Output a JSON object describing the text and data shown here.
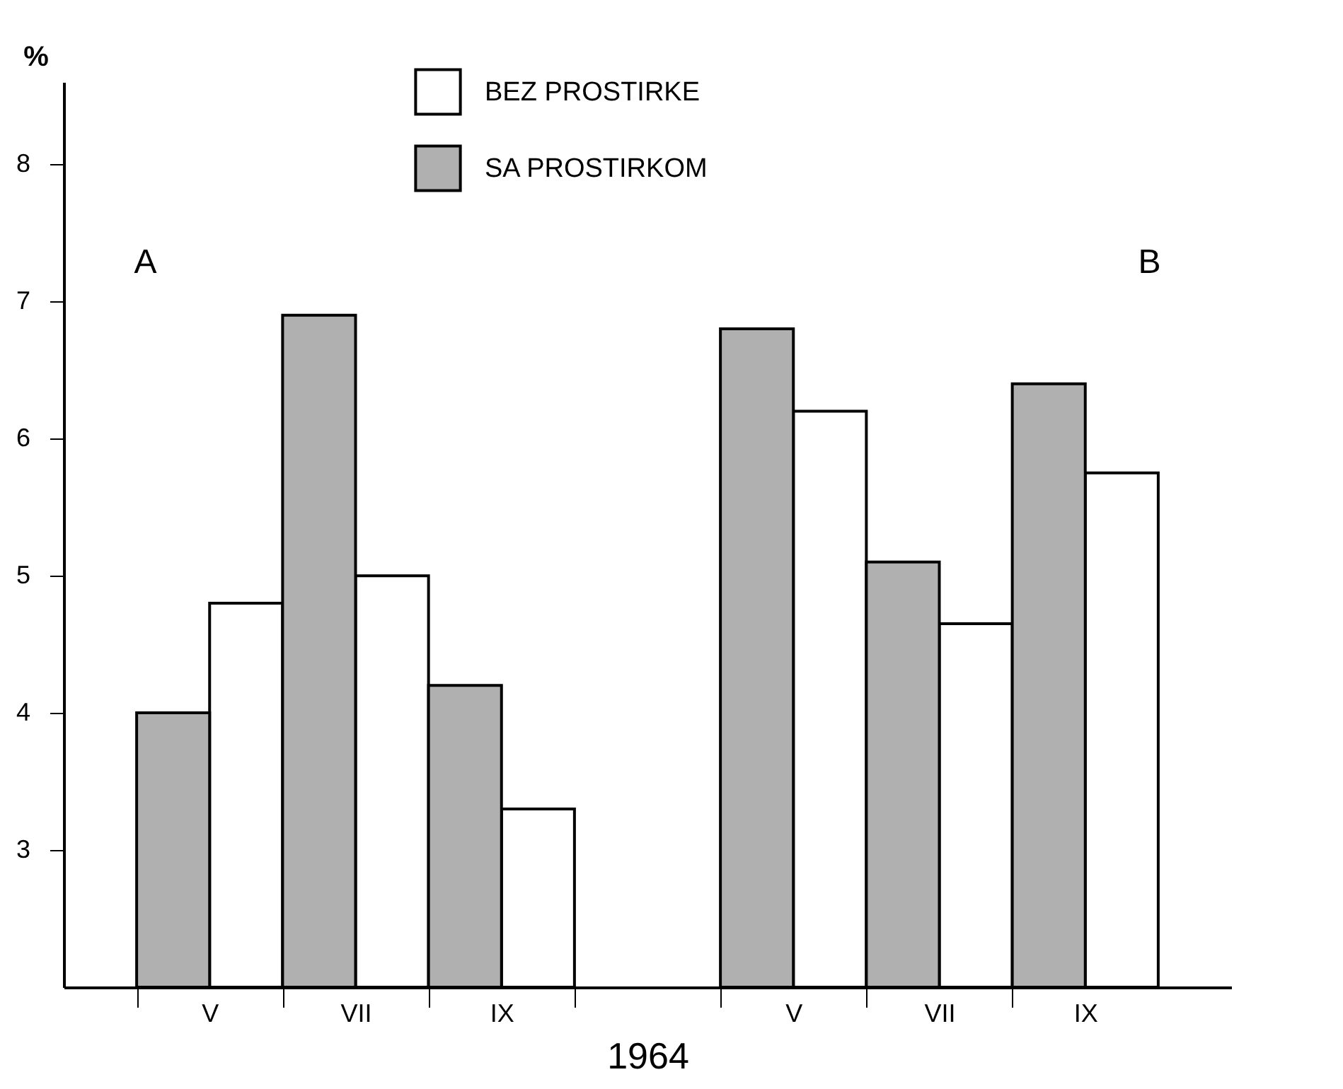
{
  "chart_data": {
    "type": "bar",
    "xlabel": "1964",
    "ylabel": "%",
    "categories": [
      "V",
      "VII",
      "IX",
      null,
      "V",
      "VII",
      "IX"
    ],
    "series": [
      {
        "name": "BEZ PROSTIRKE",
        "color": "#ffffff",
        "values": [
          4.8,
          5.0,
          3.3,
          null,
          6.2,
          4.65,
          5.75
        ]
      },
      {
        "name": "SA PROSTIRKOM",
        "color": "#b0b0b0",
        "values": [
          4.0,
          6.9,
          4.2,
          null,
          6.8,
          5.1,
          6.4
        ]
      }
    ],
    "ylim": [
      2,
      8.6
    ],
    "yticks": [
      3,
      4,
      5,
      6,
      7,
      8
    ],
    "legend": "top",
    "annotations": [
      "A",
      "B"
    ]
  }
}
